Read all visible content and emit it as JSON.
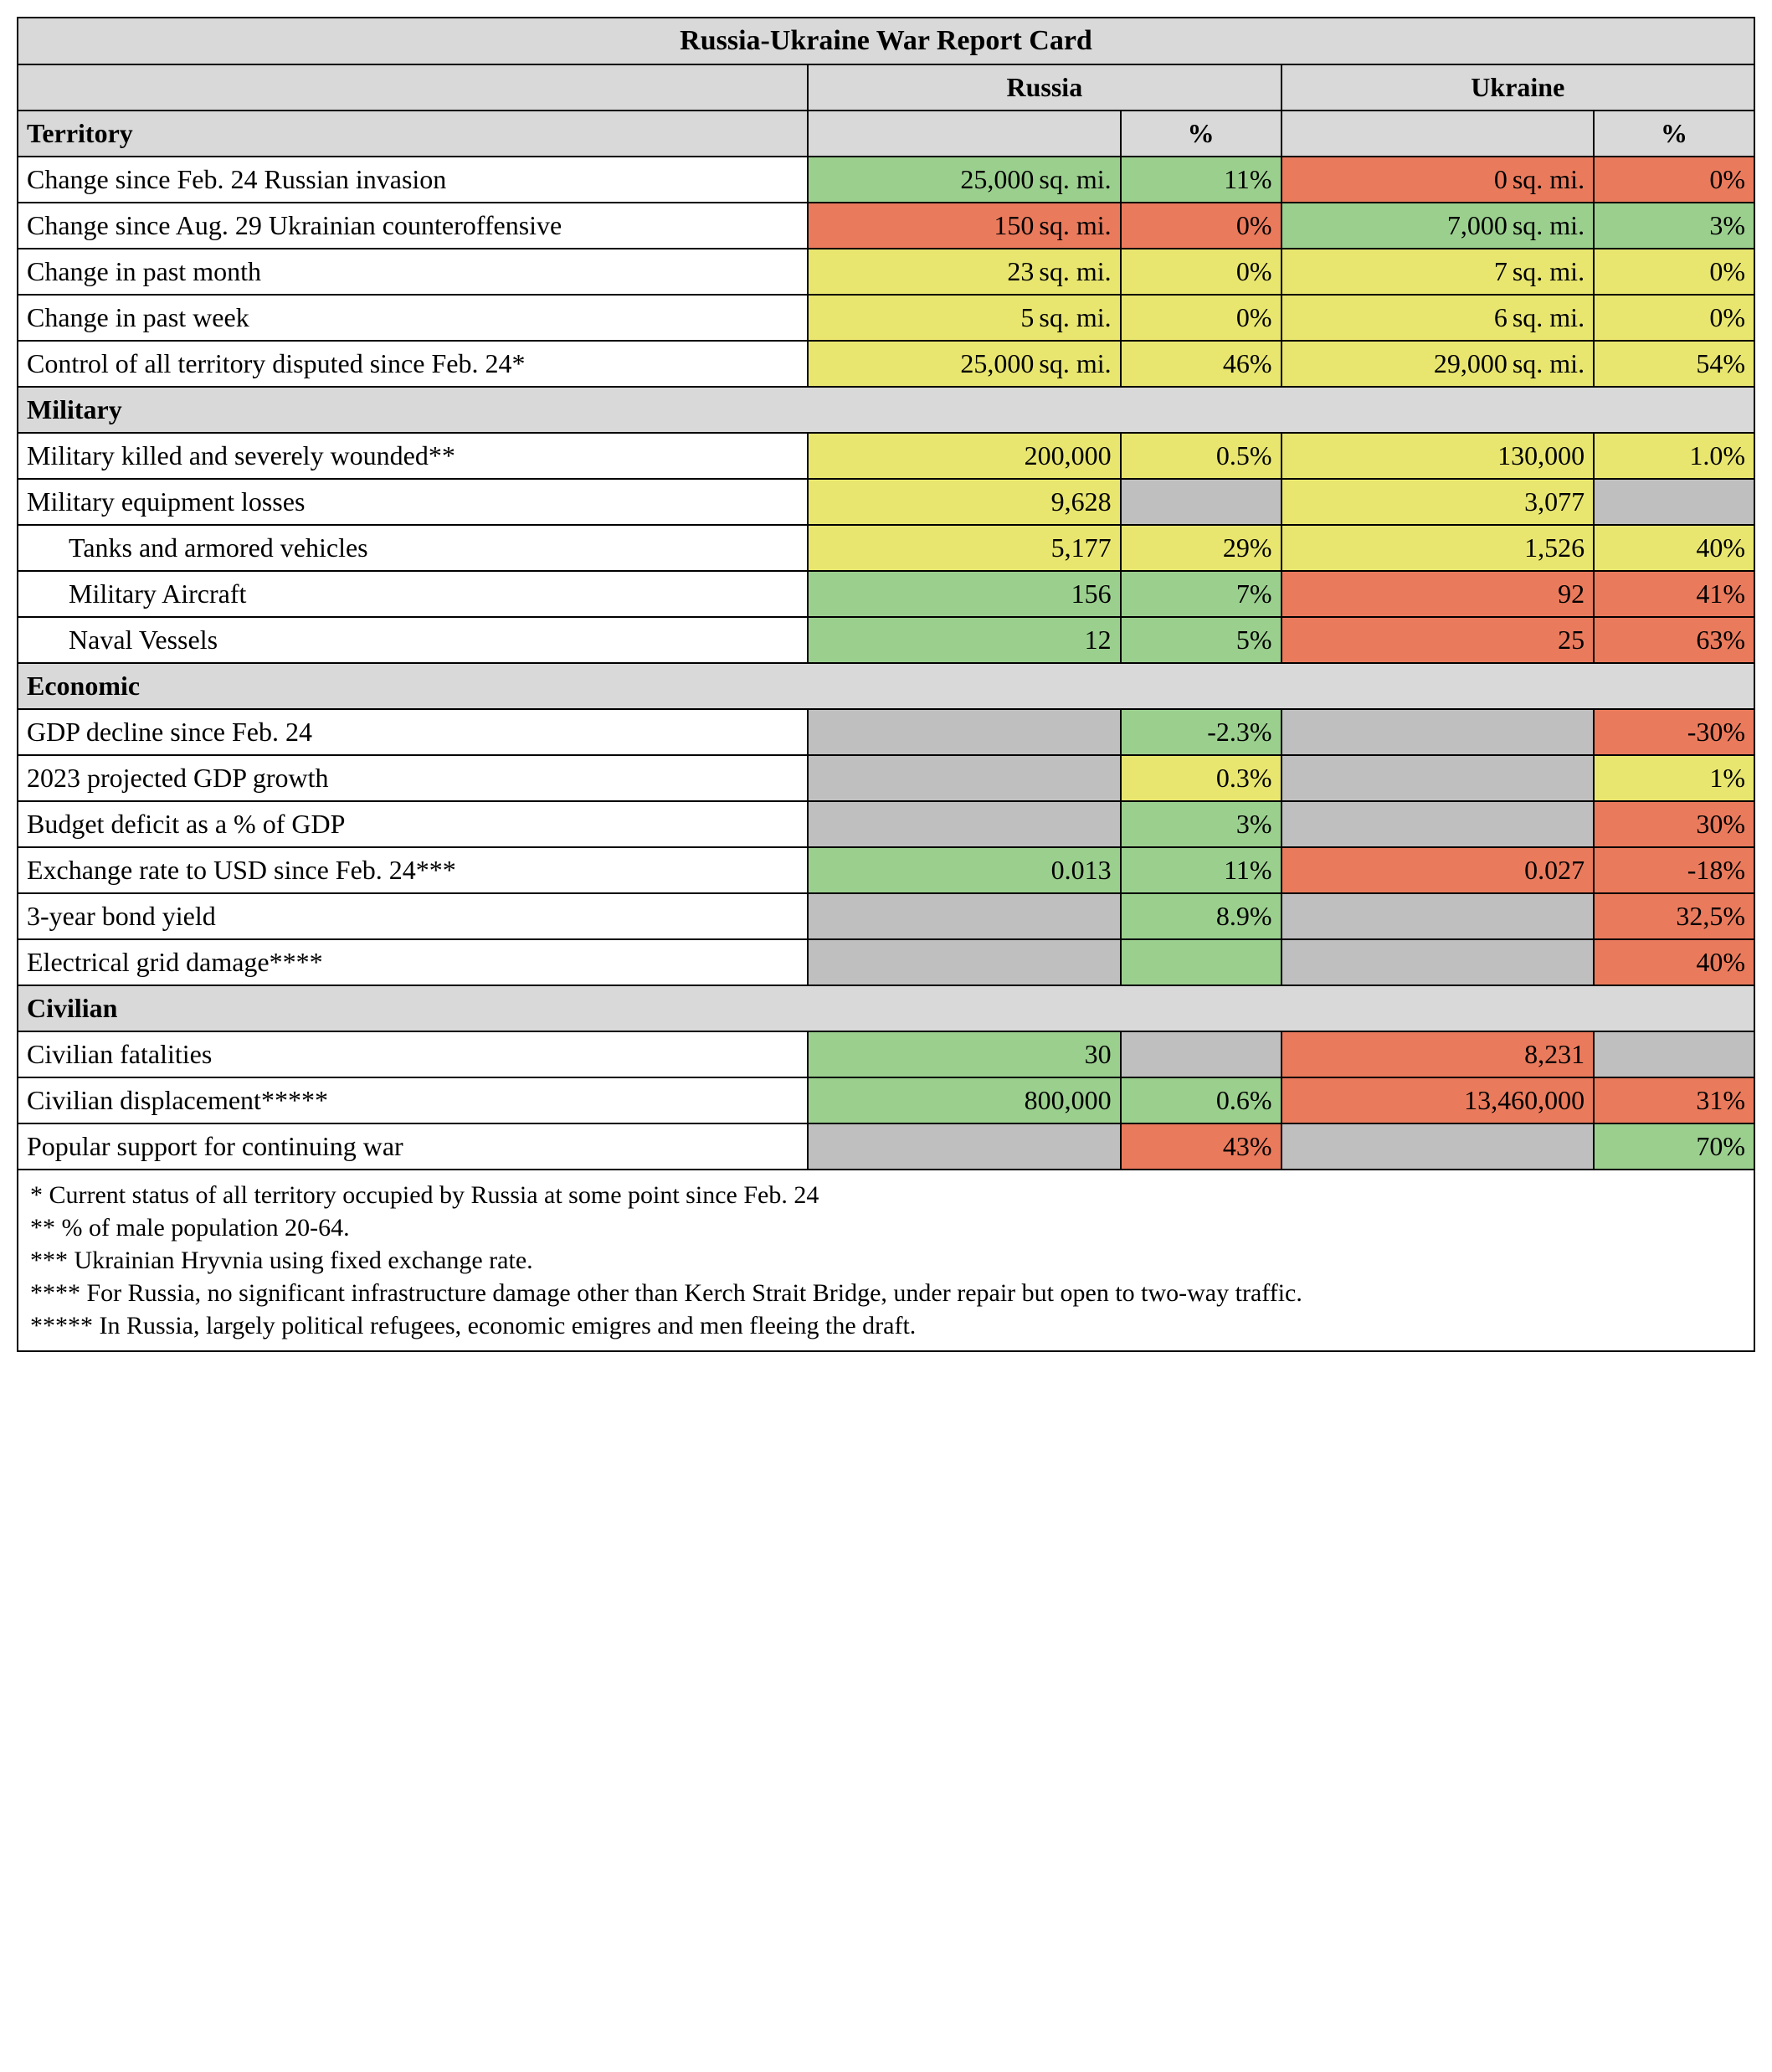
{
  "title": "Russia-Ukraine War Report Card",
  "countries": {
    "russia": "Russia",
    "ukraine": "Ukraine"
  },
  "pct_header": "%",
  "colors": {
    "green": "#9bcf8e",
    "yellow": "#e8e66f",
    "red": "#ea7a5c",
    "grey": "#bfbfbf",
    "header_grey": "#d9d9d9",
    "border": "#000000",
    "text": "#000000"
  },
  "sections": {
    "territory": "Territory",
    "military": "Military",
    "economic": "Economic",
    "civilian": "Civilian"
  },
  "rows": {
    "terr_feb24": {
      "label": "Change since Feb. 24 Russian invasion",
      "r_val": "25,000",
      "r_unit": "sq. mi.",
      "r_pct": "11%",
      "r_c": "green",
      "u_val": "0",
      "u_unit": "sq. mi.",
      "u_pct": "0%",
      "u_c": "red"
    },
    "terr_aug29": {
      "label": "Change since Aug. 29 Ukrainian counteroffensive",
      "r_val": "150",
      "r_unit": "sq. mi.",
      "r_pct": "0%",
      "r_c": "red",
      "u_val": "7,000",
      "u_unit": "sq. mi.",
      "u_pct": "3%",
      "u_c": "green"
    },
    "terr_month": {
      "label": "Change in past month",
      "r_val": "23",
      "r_unit": "sq. mi.",
      "r_pct": "0%",
      "r_c": "yellow",
      "u_val": "7",
      "u_unit": "sq. mi.",
      "u_pct": "0%",
      "u_c": "yellow"
    },
    "terr_week": {
      "label": "Change in past week",
      "r_val": "5",
      "r_unit": "sq. mi.",
      "r_pct": "0%",
      "r_c": "yellow",
      "u_val": "6",
      "u_unit": "sq. mi.",
      "u_pct": "0%",
      "u_c": "yellow"
    },
    "terr_control": {
      "label": "Control of all territory disputed since Feb. 24*",
      "r_val": "25,000",
      "r_unit": "sq. mi.",
      "r_pct": "46%",
      "r_c": "yellow",
      "u_val": "29,000",
      "u_unit": "sq. mi.",
      "u_pct": "54%",
      "u_c": "yellow"
    },
    "mil_killed": {
      "label": "Military killed and severely wounded**",
      "r_val": "200,000",
      "r_unit": "",
      "r_pct": "0.5%",
      "r_c": "yellow",
      "u_val": "130,000",
      "u_unit": "",
      "u_pct": "1.0%",
      "u_c": "yellow"
    },
    "mil_equip": {
      "label": "Military equipment losses",
      "r_val": "9,628",
      "r_unit": "",
      "r_pct": "",
      "r_c": "yellow",
      "r_pct_c": "grey",
      "u_val": "3,077",
      "u_unit": "",
      "u_pct": "",
      "u_c": "yellow",
      "u_pct_c": "grey"
    },
    "mil_tanks": {
      "label": "Tanks and armored vehicles",
      "indent": true,
      "r_val": "5,177",
      "r_unit": "",
      "r_pct": "29%",
      "r_c": "yellow",
      "u_val": "1,526",
      "u_unit": "",
      "u_pct": "40%",
      "u_c": "yellow"
    },
    "mil_air": {
      "label": "Military Aircraft",
      "indent": true,
      "r_val": "156",
      "r_unit": "",
      "r_pct": "7%",
      "r_c": "green",
      "u_val": "92",
      "u_unit": "",
      "u_pct": "41%",
      "u_c": "red"
    },
    "mil_naval": {
      "label": "Naval Vessels",
      "indent": true,
      "r_val": "12",
      "r_unit": "",
      "r_pct": "5%",
      "r_c": "green",
      "u_val": "25",
      "u_unit": "",
      "u_pct": "63%",
      "u_c": "red"
    },
    "econ_gdp": {
      "label": "GDP decline since Feb. 24",
      "r_val": "",
      "r_unit": "",
      "r_pct": "-2.3%",
      "r_c": "grey",
      "r_pct_c": "green",
      "u_val": "",
      "u_unit": "",
      "u_pct": "-30%",
      "u_c": "grey",
      "u_pct_c": "red"
    },
    "econ_proj": {
      "label": "2023 projected GDP growth",
      "r_val": "",
      "r_unit": "",
      "r_pct": "0.3%",
      "r_c": "grey",
      "r_pct_c": "yellow",
      "u_val": "",
      "u_unit": "",
      "u_pct": "1%",
      "u_c": "grey",
      "u_pct_c": "yellow"
    },
    "econ_deficit": {
      "label": "Budget deficit as a % of GDP",
      "r_val": "",
      "r_unit": "",
      "r_pct": "3%",
      "r_c": "grey",
      "r_pct_c": "green",
      "u_val": "",
      "u_unit": "",
      "u_pct": "30%",
      "u_c": "grey",
      "u_pct_c": "red"
    },
    "econ_fx": {
      "label": "Exchange rate to USD since Feb. 24***",
      "r_val": "0.013",
      "r_unit": "",
      "r_pct": "11%",
      "r_c": "green",
      "u_val": "0.027",
      "u_unit": "",
      "u_pct": "-18%",
      "u_c": "red"
    },
    "econ_bond": {
      "label": "3-year bond yield",
      "r_val": "",
      "r_unit": "",
      "r_pct": "8.9%",
      "r_c": "grey",
      "r_pct_c": "green",
      "u_val": "",
      "u_unit": "",
      "u_pct": "32,5%",
      "u_c": "grey",
      "u_pct_c": "red"
    },
    "econ_grid": {
      "label": "Electrical grid damage****",
      "r_val": "",
      "r_unit": "",
      "r_pct": "",
      "r_c": "grey",
      "r_pct_c": "green",
      "u_val": "",
      "u_unit": "",
      "u_pct": "40%",
      "u_c": "grey",
      "u_pct_c": "red"
    },
    "civ_fatal": {
      "label": "Civilian fatalities",
      "r_val": "30",
      "r_unit": "",
      "r_pct": "",
      "r_c": "green",
      "r_pct_c": "grey",
      "u_val": "8,231",
      "u_unit": "",
      "u_pct": "",
      "u_c": "red",
      "u_pct_c": "grey"
    },
    "civ_disp": {
      "label": "Civilian displacement*****",
      "r_val": "800,000",
      "r_unit": "",
      "r_pct": "0.6%",
      "r_c": "green",
      "u_val": "13,460,000",
      "u_unit": "",
      "u_pct": "31%",
      "u_c": "red"
    },
    "civ_support": {
      "label": "Popular support for continuing war",
      "r_val": "",
      "r_unit": "",
      "r_pct": "43%",
      "r_c": "grey",
      "r_pct_c": "red",
      "u_val": "",
      "u_unit": "",
      "u_pct": "70%",
      "u_c": "grey",
      "u_pct_c": "green"
    }
  },
  "footnotes": [
    "* Current status of all territory occupied by Russia at some point since Feb. 24",
    "** % of male population 20-64.",
    "*** Ukrainian Hryvnia using fixed exchange rate.",
    "**** For Russia, no significant infrastructure damage other than Kerch Strait Bridge, under repair but open to two-way traffic.",
    "***** In Russia, largely political refugees, economic emigres and men fleeing the draft."
  ]
}
